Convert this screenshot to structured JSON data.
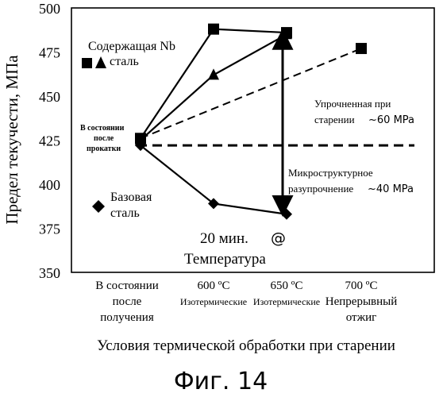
{
  "chart_data": {
    "type": "scatter",
    "ylabel": "Предел текучести, МПа",
    "xlabel": "Условия термической обработки при старении",
    "ylim": [
      350,
      500
    ],
    "yticks": [
      "350",
      "375",
      "400",
      "425",
      "450",
      "475",
      "500"
    ],
    "categories": [
      {
        "line1": "В состоянии",
        "line2": "после",
        "line3": "получения"
      },
      {
        "line1": "600 ºС",
        "line2": "Изотермические",
        "line3": ""
      },
      {
        "line1": "650 ºС",
        "line2": "Изотермические",
        "line3": ""
      },
      {
        "line1": "700 ºС",
        "line2": "Непрерывный",
        "line3": "отжиг"
      }
    ],
    "series": [
      {
        "name": "Содержащая Nb сталь",
        "marker": "square",
        "points": [
          [
            0,
            426
          ],
          [
            1,
            488
          ],
          [
            2,
            486
          ],
          [
            3,
            477
          ]
        ]
      },
      {
        "name": "Содержащая Nb сталь",
        "marker": "triangle",
        "points": [
          [
            0,
            425
          ],
          [
            1,
            462
          ],
          [
            2,
            485
          ]
        ]
      },
      {
        "name": "Базовая сталь",
        "marker": "diamond",
        "points": [
          [
            0,
            422
          ],
          [
            1,
            389
          ],
          [
            2,
            383
          ]
        ]
      }
    ],
    "reference_line": {
      "y": 422
    },
    "strengthening_arrow": {
      "x": 2,
      "from": 425,
      "to": 485
    }
  },
  "legend": {
    "nb_line1": "Содержащая Nb",
    "nb_line2": "сталь",
    "base_line1": "Базовая",
    "base_line2": "сталь"
  },
  "annotations": {
    "as_rolled_1": "В состоянии",
    "as_rolled_2": "после",
    "as_rolled_3": "прокатки",
    "hardening_1": "Упрочненная при",
    "hardening_2": "старении",
    "hardening_value": "~60 MPa",
    "softening_1": "Микроструктурное",
    "softening_2": "разупрочнение",
    "softening_value": "~40 MPa",
    "time_1": "20 мин.",
    "time_at": "@",
    "time_2": "Температура"
  },
  "figure_caption": "Фиг. 14"
}
